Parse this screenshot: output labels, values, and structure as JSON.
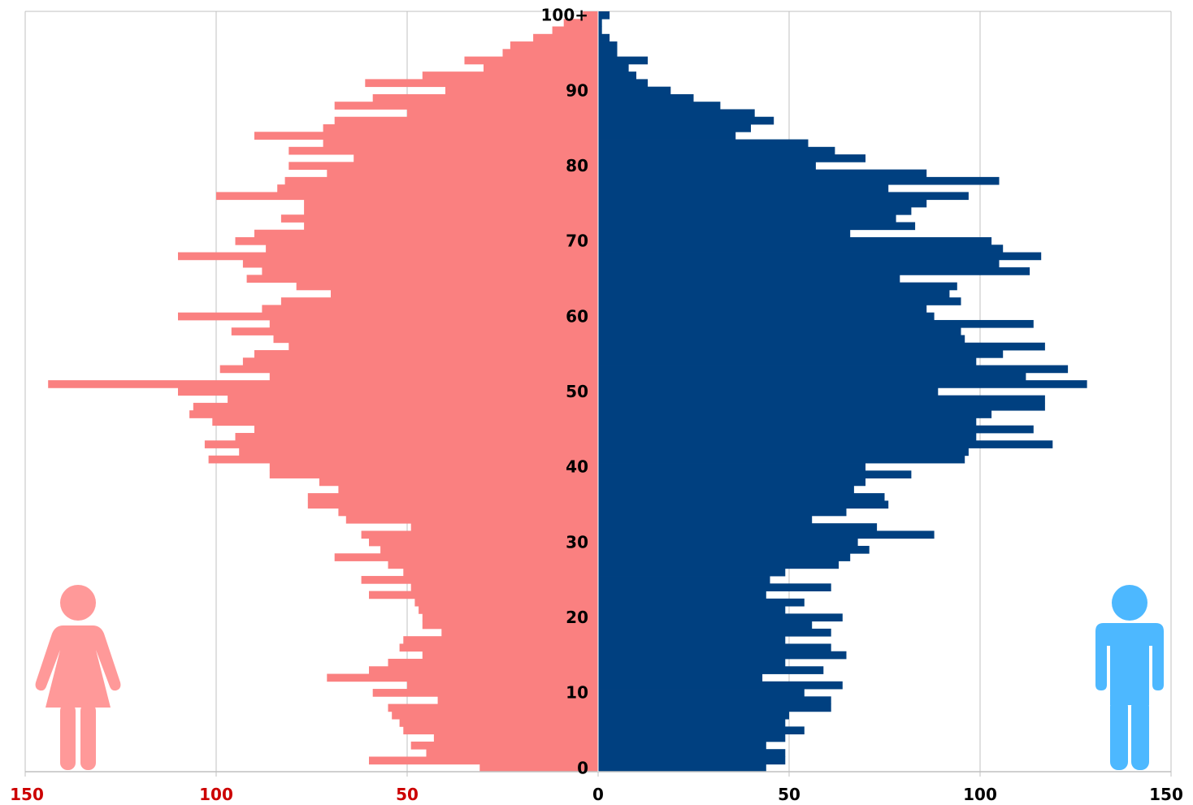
{
  "chart_data": {
    "type": "bar",
    "orientation": "horizontal",
    "categories": [
      "0",
      "1",
      "2",
      "3",
      "4",
      "5",
      "6",
      "7",
      "8",
      "9",
      "10",
      "11",
      "12",
      "13",
      "14",
      "15",
      "16",
      "17",
      "18",
      "19",
      "20",
      "21",
      "22",
      "23",
      "24",
      "25",
      "26",
      "27",
      "28",
      "29",
      "30",
      "31",
      "32",
      "33",
      "34",
      "35",
      "36",
      "37",
      "38",
      "39",
      "40",
      "41",
      "42",
      "43",
      "44",
      "45",
      "46",
      "47",
      "48",
      "49",
      "50",
      "51",
      "52",
      "53",
      "54",
      "55",
      "56",
      "57",
      "58",
      "59",
      "60",
      "61",
      "62",
      "63",
      "64",
      "65",
      "66",
      "67",
      "68",
      "69",
      "70",
      "71",
      "72",
      "73",
      "74",
      "75",
      "76",
      "77",
      "78",
      "79",
      "80",
      "81",
      "82",
      "83",
      "84",
      "85",
      "86",
      "87",
      "88",
      "89",
      "90",
      "91",
      "92",
      "93",
      "94",
      "95",
      "96",
      "97",
      "98",
      "99",
      "100+"
    ],
    "age_labels": [
      "0",
      "10",
      "20",
      "30",
      "40",
      "50",
      "60",
      "70",
      "80",
      "90",
      "100+"
    ],
    "series": [
      {
        "key": "female",
        "color": "#fa8080",
        "values": [
          31,
          60,
          45,
          49,
          43,
          51,
          52,
          54,
          55,
          42,
          59,
          50,
          71,
          60,
          55,
          46,
          52,
          51,
          41,
          46,
          46,
          47,
          48,
          60,
          49,
          62,
          51,
          55,
          69,
          57,
          60,
          62,
          49,
          66,
          68,
          76,
          76,
          68,
          73,
          86,
          86,
          102,
          94,
          103,
          95,
          90,
          101,
          107,
          106,
          97,
          110,
          144,
          86,
          99,
          93,
          90,
          81,
          85,
          96,
          86,
          110,
          88,
          83,
          70,
          79,
          92,
          88,
          93,
          110,
          87,
          95,
          90,
          77,
          83,
          77,
          77,
          100,
          84,
          82,
          71,
          81,
          64,
          81,
          72,
          90,
          72,
          69,
          50,
          69,
          59,
          40,
          61,
          46,
          30,
          35,
          25,
          23,
          17,
          12,
          9,
          4
        ]
      },
      {
        "key": "male",
        "color": "#004080",
        "values": [
          44,
          49,
          49,
          44,
          49,
          54,
          49,
          50,
          61,
          61,
          54,
          64,
          43,
          59,
          49,
          65,
          61,
          49,
          61,
          56,
          64,
          49,
          54,
          44,
          61,
          45,
          49,
          63,
          66,
          71,
          68,
          88,
          73,
          56,
          65,
          76,
          75,
          67,
          70,
          82,
          70,
          96,
          97,
          119,
          99,
          114,
          99,
          103,
          117,
          117,
          89,
          128,
          112,
          123,
          99,
          106,
          117,
          96,
          95,
          114,
          88,
          86,
          95,
          92,
          94,
          79,
          113,
          105,
          116,
          106,
          103,
          66,
          83,
          78,
          82,
          86,
          97,
          76,
          105,
          86,
          57,
          70,
          62,
          55,
          36,
          40,
          46,
          41,
          32,
          25,
          19,
          13,
          10,
          8,
          13,
          5,
          5,
          3,
          1,
          1,
          3
        ]
      }
    ],
    "axis": {
      "left_ticks": [
        "150",
        "100",
        "50",
        "0"
      ],
      "right_ticks": [
        "50",
        "100",
        "150"
      ],
      "xlim": [
        0,
        150
      ]
    },
    "grid": true,
    "colors": {
      "female_icon": "#ff9999",
      "male_icon": "#4db8ff",
      "left_tick_labels": "#cc0000",
      "grid": "#c0c0c0"
    },
    "icons": {
      "left": "female-person-icon",
      "right": "male-person-icon"
    }
  }
}
